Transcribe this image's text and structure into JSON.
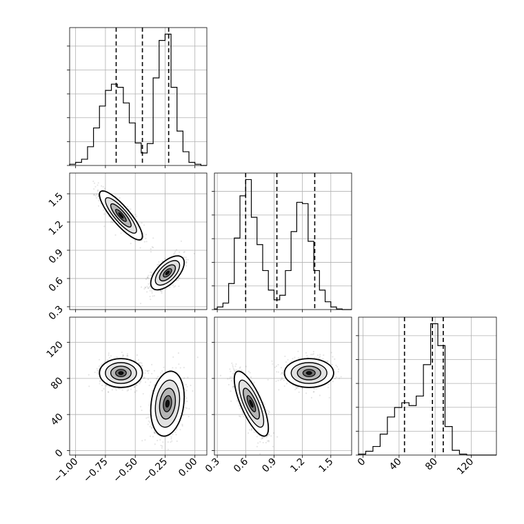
{
  "chart_data": {
    "type": "corner",
    "title": "",
    "parameters": [
      {
        "range": [
          -1.05,
          0.1
        ],
        "ticks": [
          -1.0,
          -0.75,
          -0.5,
          -0.25,
          0.0
        ],
        "tick_labels": [
          "−1.00",
          "−0.75",
          "−0.50",
          "−0.25",
          "0.00"
        ],
        "quantiles": [
          -0.66,
          -0.44,
          -0.22
        ],
        "hist_bins": [
          -1.05,
          -1.0,
          -0.95,
          -0.9,
          -0.85,
          -0.8,
          -0.75,
          -0.7,
          -0.65,
          -0.6,
          -0.55,
          -0.5,
          -0.45,
          -0.4,
          -0.35,
          -0.3,
          -0.25,
          -0.2,
          -0.15,
          -0.1,
          -0.05,
          0.0,
          0.05,
          0.1
        ],
        "hist_counts": [
          2,
          5,
          10,
          30,
          60,
          95,
          120,
          130,
          125,
          100,
          68,
          36,
          20,
          35,
          140,
          200,
          210,
          125,
          55,
          22,
          5,
          2,
          0
        ],
        "modes": [
          {
            "mean": -0.62,
            "sd": 0.09
          },
          {
            "mean": -0.23,
            "sd": 0.07
          }
        ]
      },
      {
        "range": [
          0.27,
          1.72
        ],
        "ticks": [
          0.3,
          0.6,
          0.9,
          1.2,
          1.5
        ],
        "tick_labels": [
          "0.3",
          "0.6",
          "0.9",
          "1.2",
          "1.5"
        ],
        "quantiles": [
          0.6,
          0.93,
          1.33
        ],
        "hist_bins": [
          0.27,
          0.3,
          0.36,
          0.42,
          0.48,
          0.54,
          0.6,
          0.66,
          0.72,
          0.78,
          0.84,
          0.9,
          0.96,
          1.02,
          1.08,
          1.14,
          1.2,
          1.26,
          1.32,
          1.38,
          1.44,
          1.5,
          1.56,
          1.62,
          1.72
        ],
        "hist_counts": [
          1,
          4,
          10,
          40,
          110,
          175,
          200,
          142,
          100,
          60,
          30,
          15,
          22,
          60,
          120,
          165,
          163,
          105,
          60,
          30,
          12,
          4,
          1,
          0
        ],
        "modes": [
          {
            "mean": 1.27,
            "sd": 0.13
          },
          {
            "mean": 0.66,
            "sd": 0.09
          }
        ]
      },
      {
        "range": [
          -5,
          148
        ],
        "ticks": [
          0,
          40,
          80,
          120
        ],
        "tick_labels": [
          "0",
          "40",
          "80",
          "120"
        ],
        "quantiles": [
          46,
          77,
          89
        ],
        "hist_bins": [
          -5,
          3,
          11,
          19,
          27,
          35,
          43,
          51,
          59,
          67,
          75,
          83,
          91,
          99,
          107,
          115,
          123,
          131,
          148
        ],
        "hist_counts": [
          1,
          4,
          9,
          22,
          40,
          50,
          55,
          52,
          62,
          95,
          138,
          115,
          30,
          5,
          1,
          0,
          0,
          0
        ],
        "modes": [
          {
            "mean": 86,
            "sd": 8
          },
          {
            "mean": 52,
            "sd": 18
          }
        ]
      }
    ]
  }
}
